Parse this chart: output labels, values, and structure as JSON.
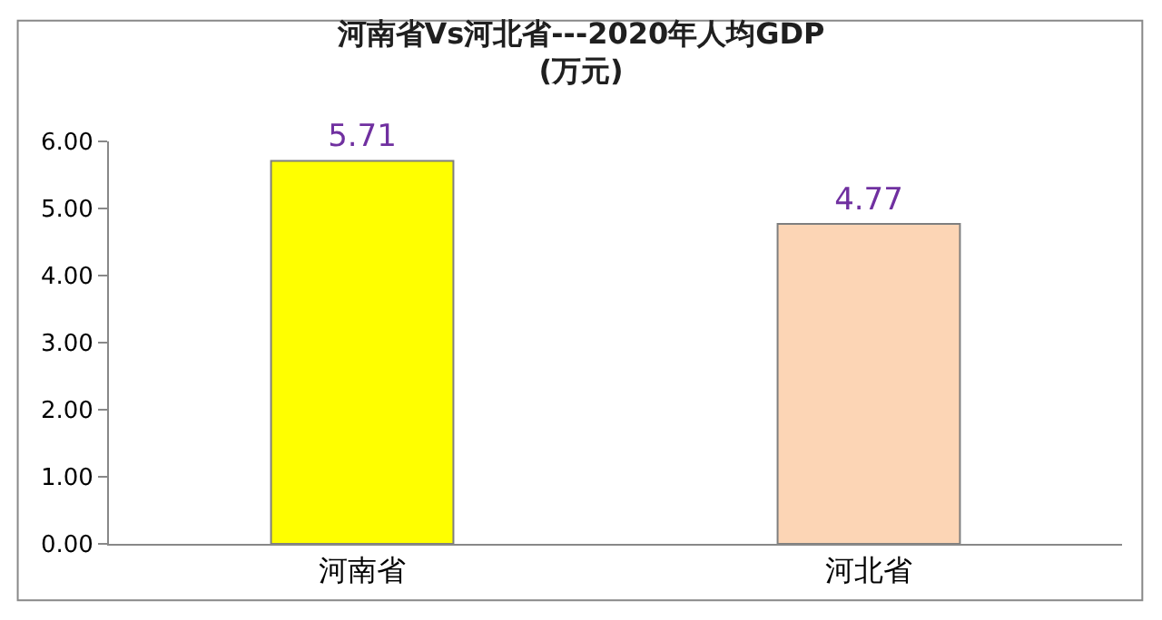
{
  "chart_data": {
    "type": "bar",
    "title": "河南省Vs河北省---2020年人均GDP",
    "subtitle": "(万元)",
    "categories": [
      "河南省",
      "河北省"
    ],
    "values": [
      5.71,
      4.77
    ],
    "colors": [
      "#ffff00",
      "#fcd5b5"
    ],
    "ylim": [
      0,
      6
    ],
    "yticks": [
      {
        "value": 0,
        "label": "0.00"
      },
      {
        "value": 1,
        "label": "1.00"
      },
      {
        "value": 2,
        "label": "2.00"
      },
      {
        "value": 3,
        "label": "3.00"
      },
      {
        "value": 4,
        "label": "4.00"
      },
      {
        "value": 5,
        "label": "5.00"
      },
      {
        "value": 6,
        "label": "6.00"
      }
    ],
    "data_labels": true,
    "legend": false
  }
}
